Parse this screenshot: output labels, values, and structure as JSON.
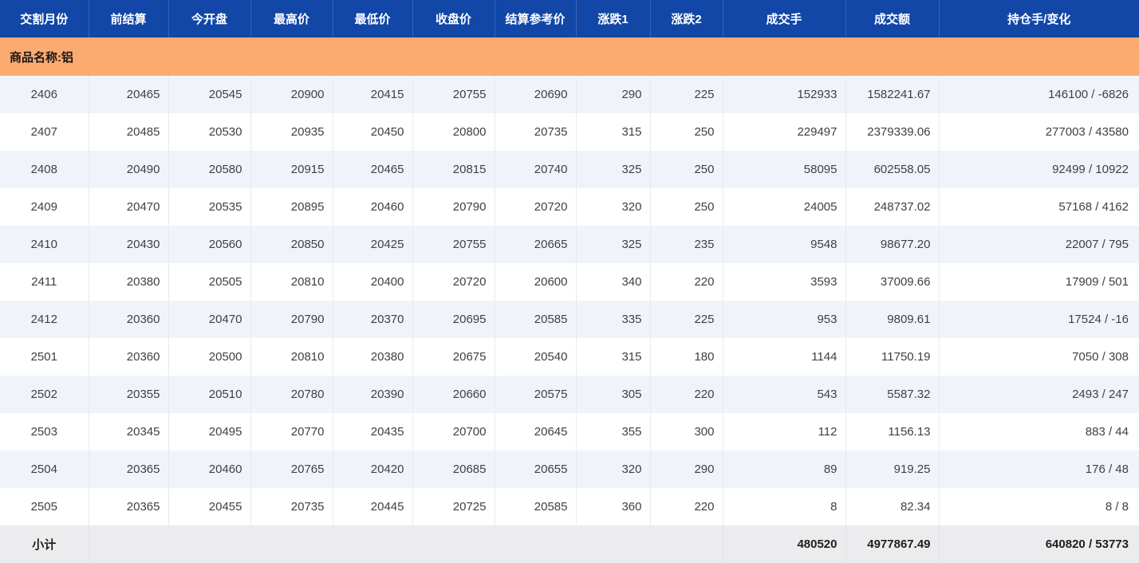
{
  "colors": {
    "header_bg": "#1247a8",
    "header_divider": "#3a61b2",
    "group_bg": "#fbaa70",
    "alt_row_bg": "#f0f4fa",
    "subtotal_bg": "#ececee"
  },
  "table": {
    "columns": [
      "交割月份",
      "前结算",
      "今开盘",
      "最高价",
      "最低价",
      "收盘价",
      "结算参考价",
      "涨跌1",
      "涨跌2",
      "成交手",
      "成交额",
      "持仓手/变化"
    ],
    "group_label": "商品名称:铝",
    "rows": [
      [
        "2406",
        "20465",
        "20545",
        "20900",
        "20415",
        "20755",
        "20690",
        "290",
        "225",
        "152933",
        "1582241.67",
        "146100 / -6826"
      ],
      [
        "2407",
        "20485",
        "20530",
        "20935",
        "20450",
        "20800",
        "20735",
        "315",
        "250",
        "229497",
        "2379339.06",
        "277003 / 43580"
      ],
      [
        "2408",
        "20490",
        "20580",
        "20915",
        "20465",
        "20815",
        "20740",
        "325",
        "250",
        "58095",
        "602558.05",
        "92499 / 10922"
      ],
      [
        "2409",
        "20470",
        "20535",
        "20895",
        "20460",
        "20790",
        "20720",
        "320",
        "250",
        "24005",
        "248737.02",
        "57168 / 4162"
      ],
      [
        "2410",
        "20430",
        "20560",
        "20850",
        "20425",
        "20755",
        "20665",
        "325",
        "235",
        "9548",
        "98677.20",
        "22007 / 795"
      ],
      [
        "2411",
        "20380",
        "20505",
        "20810",
        "20400",
        "20720",
        "20600",
        "340",
        "220",
        "3593",
        "37009.66",
        "17909 / 501"
      ],
      [
        "2412",
        "20360",
        "20470",
        "20790",
        "20370",
        "20695",
        "20585",
        "335",
        "225",
        "953",
        "9809.61",
        "17524 / -16"
      ],
      [
        "2501",
        "20360",
        "20500",
        "20810",
        "20380",
        "20675",
        "20540",
        "315",
        "180",
        "1144",
        "11750.19",
        "7050 / 308"
      ],
      [
        "2502",
        "20355",
        "20510",
        "20780",
        "20390",
        "20660",
        "20575",
        "305",
        "220",
        "543",
        "5587.32",
        "2493 / 247"
      ],
      [
        "2503",
        "20345",
        "20495",
        "20770",
        "20435",
        "20700",
        "20645",
        "355",
        "300",
        "112",
        "1156.13",
        "883 / 44"
      ],
      [
        "2504",
        "20365",
        "20460",
        "20765",
        "20420",
        "20685",
        "20655",
        "320",
        "290",
        "89",
        "919.25",
        "176 / 48"
      ],
      [
        "2505",
        "20365",
        "20455",
        "20735",
        "20445",
        "20725",
        "20585",
        "360",
        "220",
        "8",
        "82.34",
        "8 / 8"
      ]
    ],
    "subtotal": {
      "label": "小计",
      "volume": "480520",
      "turnover": "4977867.49",
      "open_interest": "640820 / 53773"
    }
  }
}
